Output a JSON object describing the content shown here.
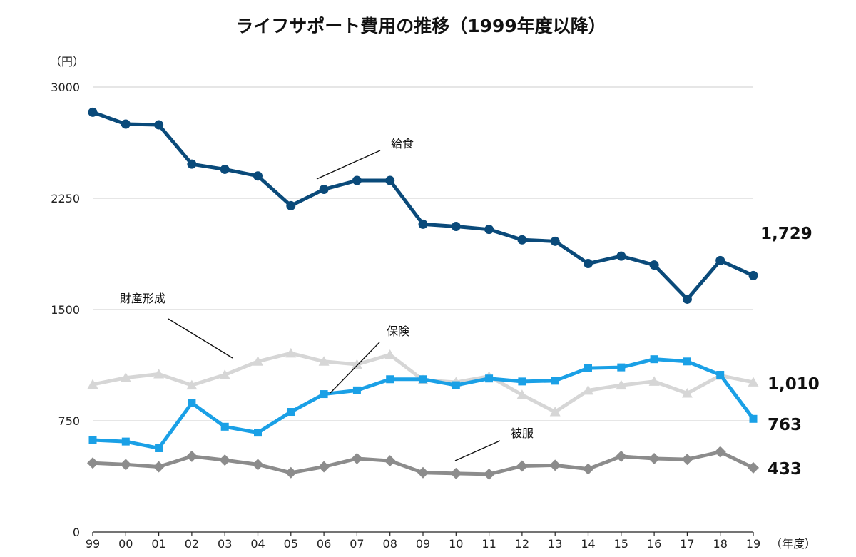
{
  "chart_data": {
    "type": "line",
    "title": "ライフサポート費用の推移（1999年度以降）",
    "ylabel": "（円）",
    "xlabel": "（年度）",
    "ylim": [
      0,
      3000
    ],
    "yticks": [
      0,
      750,
      1500,
      2250,
      3000
    ],
    "grid": true,
    "categories": [
      "99",
      "00",
      "01",
      "02",
      "03",
      "04",
      "05",
      "06",
      "07",
      "08",
      "09",
      "10",
      "11",
      "12",
      "13",
      "14",
      "15",
      "16",
      "17",
      "18",
      "19"
    ],
    "series": [
      {
        "name": "給食",
        "color": "#0a4a7a",
        "marker": "circle",
        "values": [
          2830,
          2750,
          2745,
          2480,
          2445,
          2400,
          2200,
          2310,
          2370,
          2370,
          2075,
          2060,
          2040,
          1970,
          1960,
          1810,
          1860,
          1800,
          1570,
          1830,
          1729
        ],
        "end_label": "1,729"
      },
      {
        "name": "財産形成",
        "color": "#d6d6d6",
        "marker": "triangle",
        "values": [
          995,
          1040,
          1065,
          990,
          1060,
          1150,
          1205,
          1150,
          1130,
          1195,
          1025,
          1010,
          1050,
          925,
          810,
          955,
          990,
          1015,
          935,
          1055,
          1010
        ],
        "end_label": "1,010"
      },
      {
        "name": "保険",
        "color": "#1aa0e6",
        "marker": "square",
        "values": [
          620,
          610,
          565,
          870,
          710,
          670,
          810,
          930,
          955,
          1030,
          1030,
          990,
          1035,
          1015,
          1020,
          1105,
          1110,
          1165,
          1150,
          1060,
          763
        ],
        "end_label": "763"
      },
      {
        "name": "被服",
        "color": "#8c8c8c",
        "marker": "diamond",
        "values": [
          465,
          455,
          440,
          510,
          485,
          455,
          400,
          440,
          495,
          480,
          400,
          395,
          390,
          445,
          450,
          425,
          510,
          495,
          490,
          540,
          433
        ],
        "end_label": "433"
      }
    ]
  }
}
